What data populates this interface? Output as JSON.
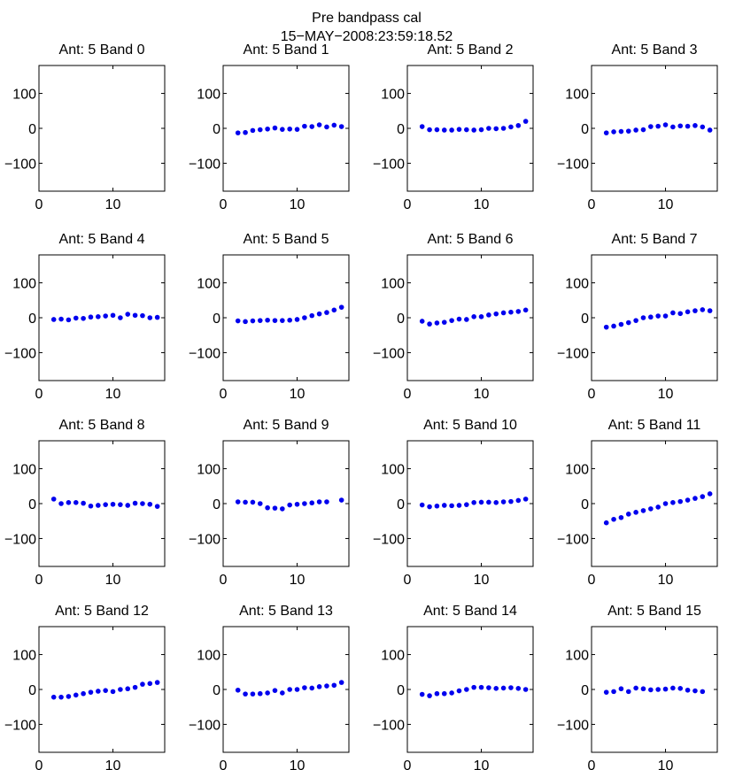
{
  "figure": {
    "title": "Pre bandpass cal",
    "subtitle": "15−MAY−2008:23:59:18.52",
    "marker_color": "#0000ee"
  },
  "chart_data": [
    {
      "type": "scatter",
      "title": "Ant: 5 Band 0",
      "xlim": [
        0,
        17
      ],
      "ylim": [
        -180,
        180
      ],
      "xticks": [
        0,
        10
      ],
      "yticks": [
        100,
        0,
        -100
      ],
      "ytick_labels": [
        "100",
        "0",
        "−100"
      ],
      "x": [],
      "y": []
    },
    {
      "type": "scatter",
      "title": "Ant: 5 Band 1",
      "xlim": [
        0,
        17
      ],
      "ylim": [
        -180,
        180
      ],
      "xticks": [
        0,
        10
      ],
      "yticks": [
        100,
        0,
        -100
      ],
      "ytick_labels": [
        "100",
        "0",
        "−100"
      ],
      "x": [
        2,
        3,
        4,
        5,
        6,
        7,
        8,
        9,
        10,
        11,
        12,
        13,
        14,
        15,
        16
      ],
      "y": [
        -13,
        -12,
        -6,
        -4,
        -2,
        1,
        -3,
        -2,
        -3,
        6,
        5,
        10,
        4,
        9,
        5
      ]
    },
    {
      "type": "scatter",
      "title": "Ant: 5 Band 2",
      "xlim": [
        0,
        17
      ],
      "ylim": [
        -180,
        180
      ],
      "xticks": [
        0,
        10
      ],
      "yticks": [
        100,
        0,
        -100
      ],
      "ytick_labels": [
        "100",
        "0",
        "−100"
      ],
      "x": [
        2,
        3,
        4,
        5,
        6,
        7,
        8,
        9,
        10,
        11,
        12,
        13,
        14,
        15,
        16
      ],
      "y": [
        5,
        -4,
        -4,
        -5,
        -5,
        -3,
        -4,
        -5,
        -4,
        0,
        -1,
        0,
        4,
        8,
        20
      ]
    },
    {
      "type": "scatter",
      "title": "Ant: 5 Band 3",
      "xlim": [
        0,
        17
      ],
      "ylim": [
        -180,
        180
      ],
      "xticks": [
        0,
        10
      ],
      "yticks": [
        100,
        0,
        -100
      ],
      "ytick_labels": [
        "100",
        "0",
        "−100"
      ],
      "x": [
        2,
        3,
        4,
        5,
        6,
        7,
        8,
        9,
        10,
        11,
        12,
        13,
        14,
        15,
        16
      ],
      "y": [
        -13,
        -10,
        -9,
        -8,
        -5,
        -4,
        5,
        6,
        10,
        4,
        7,
        6,
        8,
        4,
        -5
      ]
    },
    {
      "type": "scatter",
      "title": "Ant: 5 Band 4",
      "xlim": [
        0,
        17
      ],
      "ylim": [
        -180,
        180
      ],
      "xticks": [
        0,
        10
      ],
      "yticks": [
        100,
        0,
        -100
      ],
      "ytick_labels": [
        "100",
        "0",
        "−100"
      ],
      "x": [
        2,
        3,
        4,
        5,
        6,
        7,
        8,
        9,
        10,
        11,
        12,
        13,
        14,
        15,
        16
      ],
      "y": [
        -5,
        -4,
        -6,
        -1,
        -2,
        2,
        3,
        5,
        7,
        0,
        10,
        7,
        6,
        0,
        1
      ]
    },
    {
      "type": "scatter",
      "title": "Ant: 5 Band 5",
      "xlim": [
        0,
        17
      ],
      "ylim": [
        -180,
        180
      ],
      "xticks": [
        0,
        10
      ],
      "yticks": [
        100,
        0,
        -100
      ],
      "ytick_labels": [
        "100",
        "0",
        "−100"
      ],
      "x": [
        2,
        3,
        4,
        5,
        6,
        7,
        8,
        9,
        10,
        11,
        12,
        13,
        14,
        15,
        16
      ],
      "y": [
        -9,
        -11,
        -9,
        -8,
        -7,
        -8,
        -8,
        -7,
        -5,
        0,
        6,
        11,
        15,
        22,
        30
      ]
    },
    {
      "type": "scatter",
      "title": "Ant: 5 Band 6",
      "xlim": [
        0,
        17
      ],
      "ylim": [
        -180,
        180
      ],
      "xticks": [
        0,
        10
      ],
      "yticks": [
        100,
        0,
        -100
      ],
      "ytick_labels": [
        "100",
        "0",
        "−100"
      ],
      "x": [
        2,
        3,
        4,
        5,
        6,
        7,
        8,
        9,
        10,
        11,
        12,
        13,
        14,
        15,
        16
      ],
      "y": [
        -10,
        -18,
        -15,
        -13,
        -8,
        -4,
        -5,
        3,
        3,
        8,
        11,
        14,
        16,
        18,
        22
      ]
    },
    {
      "type": "scatter",
      "title": "Ant: 5 Band 7",
      "xlim": [
        0,
        17
      ],
      "ylim": [
        -180,
        180
      ],
      "xticks": [
        0,
        10
      ],
      "yticks": [
        100,
        0,
        -100
      ],
      "ytick_labels": [
        "100",
        "0",
        "−100"
      ],
      "x": [
        2,
        3,
        4,
        5,
        6,
        7,
        8,
        9,
        10,
        11,
        12,
        13,
        14,
        15,
        16
      ],
      "y": [
        -27,
        -24,
        -19,
        -14,
        -8,
        0,
        2,
        5,
        5,
        14,
        12,
        17,
        20,
        23,
        20
      ]
    },
    {
      "type": "scatter",
      "title": "Ant: 5 Band 8",
      "xlim": [
        0,
        17
      ],
      "ylim": [
        -180,
        180
      ],
      "xticks": [
        0,
        10
      ],
      "yticks": [
        100,
        0,
        -100
      ],
      "ytick_labels": [
        "100",
        "0",
        "−100"
      ],
      "x": [
        2,
        3,
        4,
        5,
        6,
        7,
        8,
        9,
        10,
        11,
        12,
        13,
        14,
        15,
        16
      ],
      "y": [
        13,
        0,
        3,
        3,
        1,
        -7,
        -5,
        -3,
        -2,
        -3,
        -5,
        1,
        0,
        -2,
        -8
      ]
    },
    {
      "type": "scatter",
      "title": "Ant: 5 Band 9",
      "xlim": [
        0,
        17
      ],
      "ylim": [
        -180,
        180
      ],
      "xticks": [
        0,
        10
      ],
      "yticks": [
        100,
        0,
        -100
      ],
      "ytick_labels": [
        "100",
        "0",
        "−100"
      ],
      "x": [
        2,
        3,
        4,
        5,
        6,
        7,
        8,
        9,
        10,
        11,
        12,
        13,
        14,
        16
      ],
      "y": [
        5,
        4,
        4,
        0,
        -12,
        -13,
        -15,
        -4,
        -2,
        0,
        2,
        5,
        5,
        10
      ]
    },
    {
      "type": "scatter",
      "title": "Ant: 5 Band 10",
      "xlim": [
        0,
        17
      ],
      "ylim": [
        -180,
        180
      ],
      "xticks": [
        0,
        10
      ],
      "yticks": [
        100,
        0,
        -100
      ],
      "ytick_labels": [
        "100",
        "0",
        "−100"
      ],
      "x": [
        2,
        3,
        4,
        5,
        6,
        7,
        8,
        9,
        10,
        11,
        12,
        13,
        14,
        15,
        16
      ],
      "y": [
        -4,
        -9,
        -7,
        -5,
        -6,
        -5,
        -3,
        3,
        4,
        4,
        3,
        5,
        6,
        9,
        13
      ]
    },
    {
      "type": "scatter",
      "title": "Ant: 5 Band 11",
      "xlim": [
        0,
        17
      ],
      "ylim": [
        -180,
        180
      ],
      "xticks": [
        0,
        10
      ],
      "yticks": [
        100,
        0,
        -100
      ],
      "ytick_labels": [
        "100",
        "0",
        "−100"
      ],
      "x": [
        2,
        3,
        4,
        5,
        6,
        7,
        8,
        9,
        10,
        11,
        12,
        13,
        14,
        15,
        16
      ],
      "y": [
        -55,
        -45,
        -40,
        -30,
        -25,
        -20,
        -15,
        -10,
        0,
        3,
        6,
        10,
        15,
        20,
        28
      ]
    },
    {
      "type": "scatter",
      "title": "Ant: 5 Band 12",
      "xlim": [
        0,
        17
      ],
      "ylim": [
        -180,
        180
      ],
      "xticks": [
        0,
        10
      ],
      "yticks": [
        100,
        0,
        -100
      ],
      "ytick_labels": [
        "100",
        "0",
        "−100"
      ],
      "x": [
        2,
        3,
        4,
        5,
        6,
        7,
        8,
        9,
        10,
        11,
        12,
        13,
        14,
        15,
        16
      ],
      "y": [
        -22,
        -22,
        -20,
        -16,
        -12,
        -8,
        -5,
        -3,
        -6,
        0,
        2,
        6,
        15,
        17,
        20
      ]
    },
    {
      "type": "scatter",
      "title": "Ant: 5 Band 13",
      "xlim": [
        0,
        17
      ],
      "ylim": [
        -180,
        180
      ],
      "xticks": [
        0,
        10
      ],
      "yticks": [
        100,
        0,
        -100
      ],
      "ytick_labels": [
        "100",
        "0",
        "−100"
      ],
      "x": [
        2,
        3,
        4,
        5,
        6,
        7,
        8,
        9,
        10,
        11,
        12,
        13,
        14,
        15,
        16
      ],
      "y": [
        -2,
        -13,
        -13,
        -12,
        -10,
        -3,
        -10,
        0,
        0,
        5,
        4,
        8,
        10,
        12,
        20
      ]
    },
    {
      "type": "scatter",
      "title": "Ant: 5 Band 14",
      "xlim": [
        0,
        17
      ],
      "ylim": [
        -180,
        180
      ],
      "xticks": [
        0,
        10
      ],
      "yticks": [
        100,
        0,
        -100
      ],
      "ytick_labels": [
        "100",
        "0",
        "−100"
      ],
      "x": [
        2,
        3,
        4,
        5,
        6,
        7,
        8,
        9,
        10,
        11,
        12,
        13,
        14,
        15,
        16
      ],
      "y": [
        -14,
        -18,
        -12,
        -12,
        -10,
        -4,
        0,
        6,
        6,
        5,
        3,
        4,
        5,
        3,
        0
      ]
    },
    {
      "type": "scatter",
      "title": "Ant: 5 Band 15",
      "xlim": [
        0,
        17
      ],
      "ylim": [
        -180,
        180
      ],
      "xticks": [
        0,
        10
      ],
      "yticks": [
        100,
        0,
        -100
      ],
      "ytick_labels": [
        "100",
        "0",
        "−100"
      ],
      "x": [
        2,
        3,
        4,
        5,
        6,
        7,
        8,
        9,
        10,
        11,
        12,
        13,
        14,
        15
      ],
      "y": [
        -8,
        -6,
        2,
        -6,
        4,
        2,
        -1,
        0,
        1,
        4,
        3,
        -2,
        -4,
        -6
      ]
    }
  ]
}
